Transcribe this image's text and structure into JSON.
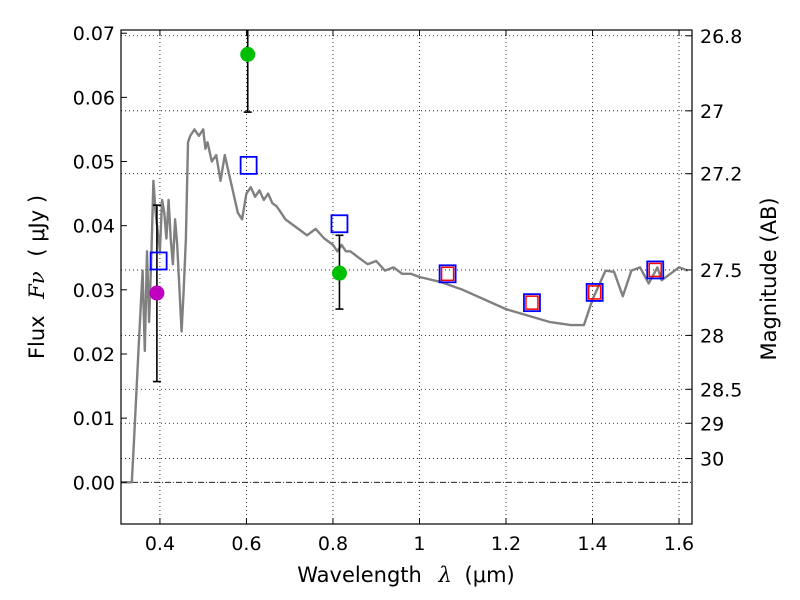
{
  "chart_data": {
    "type": "scatter",
    "xlabel_prefix": "Wavelength",
    "xlabel_symbol": "λ",
    "xlabel_unit": "(μm)",
    "ylabel_prefix": "Flux",
    "ylabel_symbol": "Fν",
    "ylabel_unit": "( μJy )",
    "y2label": "Magnitude (AB)",
    "xlim": [
      0.31,
      1.63
    ],
    "ylim": [
      -0.0065,
      0.0705
    ],
    "grid": true,
    "x_ticks": [
      0.4,
      0.6,
      0.8,
      1.0,
      1.2,
      1.4,
      1.6
    ],
    "x_tick_labels": [
      "0.4",
      "0.6",
      "0.8",
      "1",
      "1.2",
      "1.4",
      "1.6"
    ],
    "y_ticks": [
      0.0,
      0.01,
      0.02,
      0.03,
      0.04,
      0.05,
      0.06,
      0.07
    ],
    "y_tick_labels": [
      "0.00",
      "0.01",
      "0.02",
      "0.03",
      "0.04",
      "0.05",
      "0.06",
      "0.07"
    ],
    "mag_ticks": [
      {
        "label": "26.8",
        "flux": 0.0696
      },
      {
        "label": "27",
        "flux": 0.0579
      },
      {
        "label": "27.2",
        "flux": 0.0481
      },
      {
        "label": "27.5",
        "flux": 0.0331
      },
      {
        "label": "28",
        "flux": 0.0229
      },
      {
        "label": "28.5",
        "flux": 0.0145
      },
      {
        "label": "29",
        "flux": 0.0092
      },
      {
        "label": "30",
        "flux": 0.0037
      }
    ],
    "model_sed": {
      "name": "Model SED",
      "color": "#808080",
      "x": [
        0.31,
        0.335,
        0.34,
        0.35,
        0.36,
        0.365,
        0.37,
        0.375,
        0.38,
        0.385,
        0.39,
        0.395,
        0.4,
        0.405,
        0.41,
        0.415,
        0.42,
        0.425,
        0.43,
        0.435,
        0.44,
        0.45,
        0.455,
        0.46,
        0.465,
        0.47,
        0.48,
        0.49,
        0.5,
        0.505,
        0.51,
        0.52,
        0.53,
        0.54,
        0.55,
        0.56,
        0.57,
        0.58,
        0.59,
        0.6,
        0.61,
        0.62,
        0.63,
        0.64,
        0.65,
        0.66,
        0.67,
        0.68,
        0.69,
        0.7,
        0.72,
        0.74,
        0.76,
        0.78,
        0.8,
        0.81,
        0.82,
        0.83,
        0.84,
        0.86,
        0.88,
        0.9,
        0.92,
        0.94,
        0.96,
        0.98,
        1.0,
        1.05,
        1.1,
        1.15,
        1.2,
        1.25,
        1.3,
        1.35,
        1.38,
        1.4,
        1.43,
        1.45,
        1.47,
        1.49,
        1.51,
        1.53,
        1.55,
        1.56,
        1.58,
        1.6,
        1.62
      ],
      "y": [
        0.0,
        0.0,
        0.0065,
        0.02,
        0.033,
        0.0205,
        0.036,
        0.025,
        0.035,
        0.047,
        0.042,
        0.039,
        0.036,
        0.044,
        0.042,
        0.038,
        0.044,
        0.038,
        0.034,
        0.041,
        0.037,
        0.0235,
        0.03,
        0.038,
        0.053,
        0.054,
        0.055,
        0.054,
        0.055,
        0.052,
        0.053,
        0.05,
        0.051,
        0.047,
        0.051,
        0.048,
        0.045,
        0.042,
        0.041,
        0.045,
        0.046,
        0.0445,
        0.0455,
        0.044,
        0.045,
        0.0435,
        0.043,
        0.042,
        0.041,
        0.0405,
        0.0395,
        0.0385,
        0.0395,
        0.038,
        0.037,
        0.036,
        0.037,
        0.036,
        0.036,
        0.035,
        0.034,
        0.0345,
        0.033,
        0.0335,
        0.0325,
        0.0325,
        0.032,
        0.0312,
        0.03,
        0.0285,
        0.027,
        0.026,
        0.025,
        0.0245,
        0.0245,
        0.0285,
        0.033,
        0.0328,
        0.029,
        0.033,
        0.0335,
        0.031,
        0.0335,
        0.0315,
        0.0325,
        0.0335,
        0.033
      ]
    },
    "observed_points": [
      {
        "name": "B-band point",
        "x": 0.393,
        "y": 0.0295,
        "yerr_low": 0.0157,
        "yerr_high": 0.0432,
        "color": "#bf00bf"
      },
      {
        "name": "r-band point",
        "x": 0.603,
        "y": 0.0667,
        "yerr_low": 0.0577,
        "yerr_high": 0.0705,
        "color": "#00bf00"
      },
      {
        "name": "i-band point",
        "x": 0.815,
        "y": 0.0326,
        "yerr_low": 0.027,
        "yerr_high": 0.0385,
        "color": "#00bf00"
      }
    ],
    "model_photometry_blue": {
      "color": "#0000ff",
      "x": [
        0.397,
        0.605,
        0.815,
        1.065,
        1.26,
        1.405,
        1.545
      ],
      "y": [
        0.0345,
        0.0494,
        0.0403,
        0.0325,
        0.028,
        0.0296,
        0.0331
      ]
    },
    "model_photometry_red": {
      "color": "#ff0000",
      "x": [
        1.065,
        1.26,
        1.405,
        1.545
      ],
      "y": [
        0.0325,
        0.028,
        0.0296,
        0.0331
      ]
    }
  }
}
